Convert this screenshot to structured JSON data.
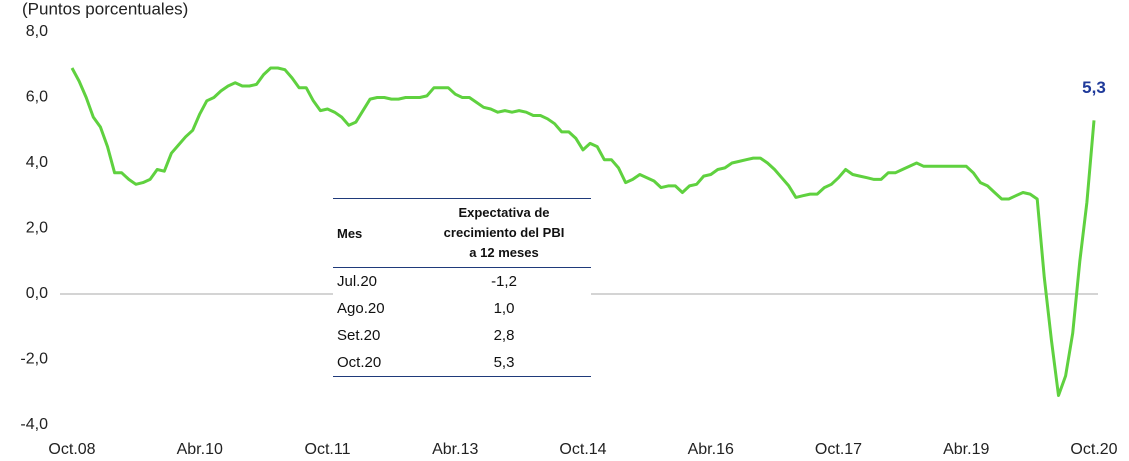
{
  "chart_data": {
    "type": "line",
    "subtitle": "(Puntos porcentuales)",
    "categories": [
      "Oct.08",
      null,
      null,
      null,
      null,
      null,
      null,
      null,
      null,
      null,
      null,
      null,
      null,
      null,
      null,
      null,
      null,
      null,
      "Abr.10",
      null,
      null,
      null,
      null,
      null,
      null,
      null,
      null,
      null,
      null,
      null,
      null,
      null,
      null,
      null,
      null,
      null,
      "Oct.11",
      null,
      null,
      null,
      null,
      null,
      null,
      null,
      null,
      null,
      null,
      null,
      null,
      null,
      null,
      null,
      null,
      null,
      "Abr.13",
      null,
      null,
      null,
      null,
      null,
      null,
      null,
      null,
      null,
      null,
      null,
      null,
      null,
      null,
      null,
      null,
      null,
      "Oct.14",
      null,
      null,
      null,
      null,
      null,
      null,
      null,
      null,
      null,
      null,
      null,
      null,
      null,
      null,
      null,
      null,
      null,
      "Abr.16",
      null,
      null,
      null,
      null,
      null,
      null,
      null,
      null,
      null,
      null,
      null,
      null,
      null,
      null,
      null,
      null,
      null,
      "Oct.17",
      null,
      null,
      null,
      null,
      null,
      null,
      null,
      null,
      null,
      null,
      null,
      null,
      null,
      null,
      null,
      null,
      null,
      "Abr.19",
      null,
      null,
      null,
      null,
      null,
      null,
      null,
      null,
      null,
      null,
      null,
      null,
      null,
      null,
      null,
      null,
      null,
      "Oct.20"
    ],
    "series": [
      {
        "name": "Expectativa de crecimiento del PBI a 12 meses",
        "color": "#5fd13f",
        "values": [
          6.9,
          6.5,
          6.0,
          5.4,
          5.1,
          4.5,
          3.7,
          3.7,
          3.5,
          3.35,
          3.4,
          3.5,
          3.8,
          3.75,
          4.3,
          4.55,
          4.8,
          5.0,
          5.5,
          5.9,
          6.0,
          6.2,
          6.35,
          6.45,
          6.35,
          6.35,
          6.4,
          6.7,
          6.9,
          6.9,
          6.85,
          6.6,
          6.3,
          6.3,
          5.9,
          5.6,
          5.65,
          5.55,
          5.4,
          5.15,
          5.25,
          5.6,
          5.95,
          6.0,
          6.0,
          5.95,
          5.95,
          6.0,
          6.0,
          6.0,
          6.05,
          6.3,
          6.3,
          6.3,
          6.1,
          6.0,
          6.0,
          5.85,
          5.7,
          5.65,
          5.55,
          5.6,
          5.55,
          5.6,
          5.55,
          5.45,
          5.45,
          5.35,
          5.2,
          4.95,
          4.95,
          4.75,
          4.4,
          4.6,
          4.5,
          4.1,
          4.1,
          3.85,
          3.4,
          3.5,
          3.65,
          3.55,
          3.45,
          3.25,
          3.3,
          3.3,
          3.1,
          3.3,
          3.35,
          3.6,
          3.65,
          3.8,
          3.85,
          4.0,
          4.05,
          4.1,
          4.15,
          4.15,
          4.0,
          3.8,
          3.55,
          3.3,
          2.95,
          3.0,
          3.05,
          3.05,
          3.25,
          3.35,
          3.55,
          3.8,
          3.65,
          3.6,
          3.55,
          3.5,
          3.5,
          3.7,
          3.7,
          3.8,
          3.9,
          4.0,
          3.9,
          3.9,
          3.9,
          3.9,
          3.9,
          3.9,
          3.9,
          3.7,
          3.4,
          3.3,
          3.1,
          2.9,
          2.9,
          3.0,
          3.1,
          3.05,
          2.9,
          0.5,
          -1.4,
          -3.1,
          -2.5,
          -1.2,
          1.0,
          2.8,
          5.3
        ]
      }
    ],
    "ylim": [
      -4,
      8
    ],
    "yticks": [
      {
        "value": -4,
        "label": "-4,0"
      },
      {
        "value": -2,
        "label": "-2,0"
      },
      {
        "value": 0,
        "label": "0,0"
      },
      {
        "value": 2,
        "label": "2,0"
      },
      {
        "value": 4,
        "label": "4,0"
      },
      {
        "value": 6,
        "label": "6,0"
      },
      {
        "value": 8,
        "label": "8,0"
      }
    ],
    "zero_line": true,
    "grid": false,
    "annotations": [
      {
        "text": "5,3",
        "color": "#1f3a9a"
      }
    ]
  },
  "table": {
    "header": [
      "Mes",
      [
        "Expectativa de",
        "crecimiento del PBI",
        "a 12 meses"
      ]
    ],
    "rows": [
      [
        "Jul.20",
        "-1,2"
      ],
      [
        "Ago.20",
        "1,0"
      ],
      [
        "Set.20",
        "2,8"
      ],
      [
        "Oct.20",
        "5,3"
      ]
    ]
  }
}
